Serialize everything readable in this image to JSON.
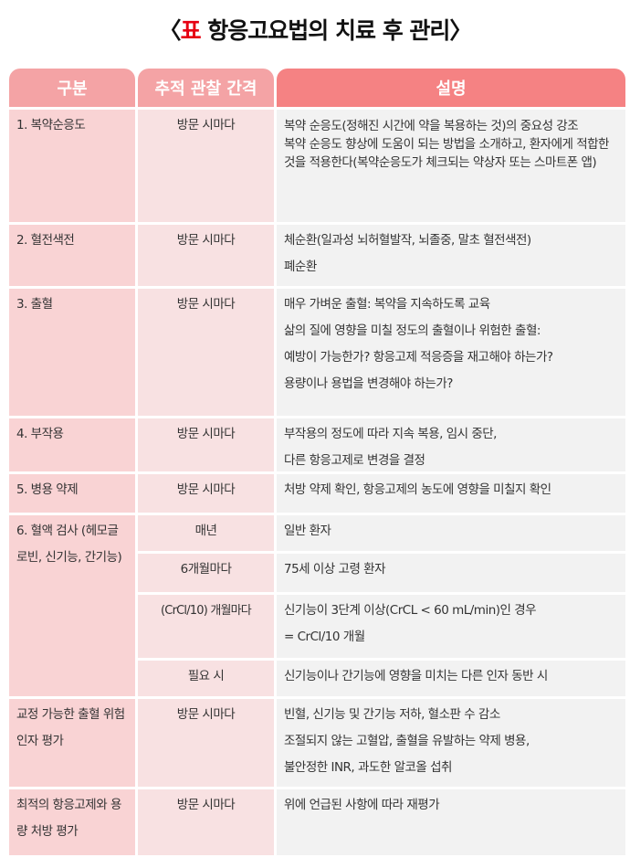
{
  "title": {
    "prefix": "〈",
    "highlight": "표",
    "text": " 항응고요법의 치료 후 관리",
    "suffix": "〉"
  },
  "headers": [
    "구분",
    "추적 관찰 간격",
    "설명"
  ],
  "rows": [
    {
      "category": "1. 복약순응도",
      "interval": "방문 시마다",
      "desc": [
        "복약 순응도(정해진 시간에 약을 복용하는 것)의 중요성 강조",
        "복약 순응도 향상에 도움이 되는 방법을 소개하고, 환자에게 적합한 것을 적용한다(복약순응도가 체크되는 약상자 또는 스마트폰 앱)"
      ]
    },
    {
      "category": "2. 혈전색전",
      "interval": "방문 시마다",
      "desc": [
        "체순환(일과성 뇌허혈발작, 뇌졸중, 말초 혈전색전)",
        "폐순환"
      ]
    },
    {
      "category": "3. 출혈",
      "interval": "방문 시마다",
      "desc": [
        "매우 가벼운 출혈: 복약을 지속하도록 교육",
        "삶의 질에 영향을 미칠 정도의 출혈이나 위험한 출혈:",
        "예방이 가능한가? 항응고제 적응증을 재고해야 하는가?",
        "용량이나 용법을 변경해야 하는가?"
      ]
    },
    {
      "category": "4. 부작용",
      "interval": "방문 시마다",
      "desc": [
        "부작용의 정도에 따라 지속 복용, 임시 중단,",
        "다른 항응고제로 변경을 결정"
      ]
    },
    {
      "category": "5. 병용 약제",
      "interval": "방문 시마다",
      "desc": [
        "처방 약제 확인, 항응고제의 농도에 영향을 미칠지 확인"
      ]
    },
    {
      "category": "6. 혈액 검사 (헤모글로빈, 신기능, 간기능)",
      "sub": [
        {
          "interval": "매년",
          "desc": [
            "일반 환자"
          ]
        },
        {
          "interval": "6개월마다",
          "desc": [
            "75세 이상 고령 환자"
          ]
        },
        {
          "interval": "(CrCl/10) 개월마다",
          "desc": [
            "신기능이 3단계 이상(CrCL < 60 mL/min)인 경우",
            "= CrCl/10 개월"
          ]
        },
        {
          "interval": "필요 시",
          "desc": [
            "신기능이나 간기능에 영향을 미치는 다른 인자 동반 시"
          ]
        }
      ]
    },
    {
      "category": "교정 가능한 출혈 위험인자 평가",
      "interval": "방문 시마다",
      "desc": [
        "빈혈, 신기능 및 간기능 저하, 혈소판 수 감소",
        "조절되지 않는 고혈압, 출혈을 유발하는 약제 병용,",
        "불안정한 INR, 과도한 알코올 섭취"
      ]
    },
    {
      "category": "최적의 항응고제와 용량 처방 평가",
      "interval": "방문 시마다",
      "desc": [
        "위에 언급된 사항에 따라 재평가"
      ]
    }
  ],
  "colors": {
    "header_light": "#f4a3a5",
    "header_dark": "#f58283",
    "col1": "#f9d3d4",
    "col2": "#f8e1e2",
    "col3": "#f2f2f2",
    "highlight": "#e60012"
  }
}
